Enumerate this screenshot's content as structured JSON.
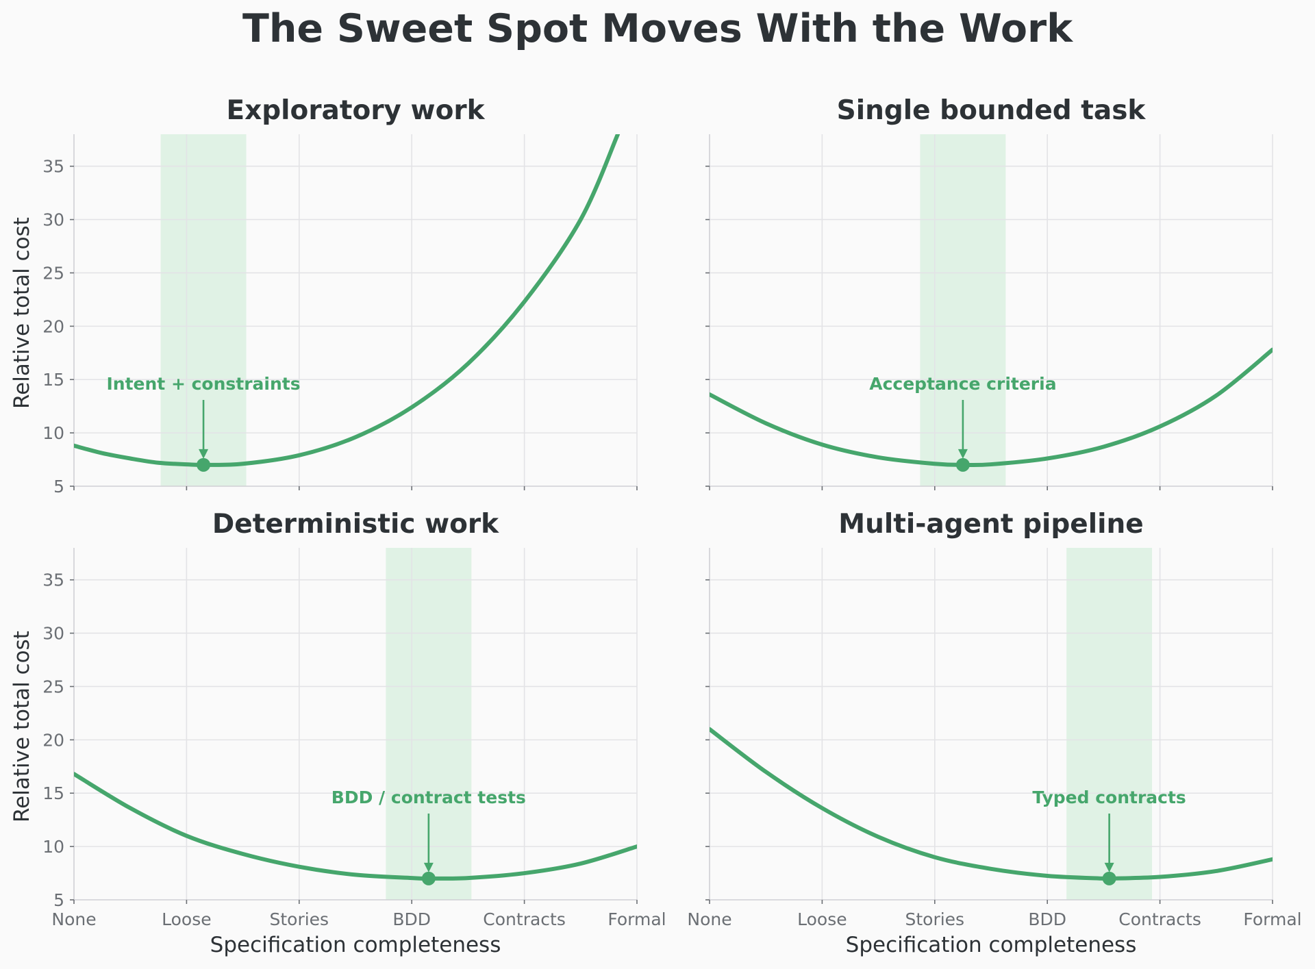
{
  "figure_title": "The Sweet Spot Moves With the Work",
  "colors": {
    "curve": "#46a66c",
    "band": "#e0f2e5",
    "annotation": "#46a66c",
    "text": "#2d3236",
    "tick": "#6b6f74",
    "grid": "#e3e3e6"
  },
  "chart_data": [
    {
      "type": "line",
      "title": "Exploratory work",
      "xlabel": "",
      "ylabel": "Relative total cost",
      "x_categories": [
        "None",
        "Loose",
        "Stories",
        "BDD",
        "Contracts",
        "Formal"
      ],
      "xlim": [
        0,
        5
      ],
      "ylim": [
        5,
        38
      ],
      "yticks": [
        5,
        10,
        15,
        20,
        25,
        30,
        35
      ],
      "grid": true,
      "sweet_spot_band": [
        0.77,
        1.53
      ],
      "series": [
        {
          "x": [
            0,
            0.25,
            0.5,
            0.75,
            1.0,
            1.15,
            1.5,
            2.0,
            2.5,
            3.0,
            3.5,
            4.0,
            4.5,
            4.83
          ],
          "y": [
            8.8,
            8.1,
            7.6,
            7.2,
            7.05,
            7.0,
            7.1,
            7.9,
            9.6,
            12.4,
            16.5,
            22.3,
            30.0,
            38.0
          ]
        }
      ],
      "minimum": {
        "x": 1.15,
        "y": 7.0
      },
      "annotation": {
        "text": "Intent + constraints",
        "x": 1.15,
        "y": 7.0,
        "text_y": 14.5
      }
    },
    {
      "type": "line",
      "title": "Single bounded task",
      "xlabel": "",
      "ylabel": "",
      "x_categories": [
        "None",
        "Loose",
        "Stories",
        "BDD",
        "Contracts",
        "Formal"
      ],
      "xlim": [
        0,
        5
      ],
      "ylim": [
        5,
        38
      ],
      "yticks": [
        5,
        10,
        15,
        20,
        25,
        30,
        35
      ],
      "grid": true,
      "sweet_spot_band": [
        1.87,
        2.63
      ],
      "series": [
        {
          "x": [
            0,
            0.5,
            1.0,
            1.5,
            2.0,
            2.25,
            2.5,
            3.0,
            3.5,
            4.0,
            4.5,
            5.0
          ],
          "y": [
            13.6,
            10.9,
            8.9,
            7.7,
            7.1,
            7.0,
            7.05,
            7.6,
            8.7,
            10.6,
            13.5,
            17.8
          ]
        }
      ],
      "minimum": {
        "x": 2.25,
        "y": 7.0
      },
      "annotation": {
        "text": "Acceptance criteria",
        "x": 2.25,
        "y": 7.0,
        "text_y": 14.5
      }
    },
    {
      "type": "line",
      "title": "Deterministic work",
      "xlabel": "Specification completeness",
      "ylabel": "Relative total cost",
      "x_categories": [
        "None",
        "Loose",
        "Stories",
        "BDD",
        "Contracts",
        "Formal"
      ],
      "xlim": [
        0,
        5
      ],
      "ylim": [
        5,
        38
      ],
      "yticks": [
        5,
        10,
        15,
        20,
        25,
        30,
        35
      ],
      "grid": true,
      "sweet_spot_band": [
        2.77,
        3.53
      ],
      "series": [
        {
          "x": [
            0,
            0.5,
            1.0,
            1.5,
            2.0,
            2.5,
            3.0,
            3.15,
            3.5,
            4.0,
            4.5,
            5.0
          ],
          "y": [
            16.8,
            13.6,
            11.0,
            9.3,
            8.1,
            7.35,
            7.05,
            7.0,
            7.05,
            7.5,
            8.4,
            10.0
          ]
        }
      ],
      "minimum": {
        "x": 3.15,
        "y": 7.0
      },
      "annotation": {
        "text": "BDD / contract tests",
        "x": 3.15,
        "y": 7.0,
        "text_y": 14.5
      }
    },
    {
      "type": "line",
      "title": "Multi-agent pipeline",
      "xlabel": "Specification completeness",
      "ylabel": "",
      "x_categories": [
        "None",
        "Loose",
        "Stories",
        "BDD",
        "Contracts",
        "Formal"
      ],
      "xlim": [
        0,
        5
      ],
      "ylim": [
        5,
        38
      ],
      "yticks": [
        5,
        10,
        15,
        20,
        25,
        30,
        35
      ],
      "grid": true,
      "sweet_spot_band": [
        3.17,
        3.93
      ],
      "series": [
        {
          "x": [
            0,
            0.5,
            1.0,
            1.5,
            2.0,
            2.5,
            3.0,
            3.5,
            3.55,
            4.0,
            4.5,
            5.0
          ],
          "y": [
            21.0,
            17.0,
            13.6,
            10.9,
            9.0,
            7.9,
            7.25,
            7.0,
            7.0,
            7.15,
            7.7,
            8.8
          ]
        }
      ],
      "minimum": {
        "x": 3.55,
        "y": 7.0
      },
      "annotation": {
        "text": "Typed contracts",
        "x": 3.55,
        "y": 7.0,
        "text_y": 14.5
      }
    }
  ]
}
